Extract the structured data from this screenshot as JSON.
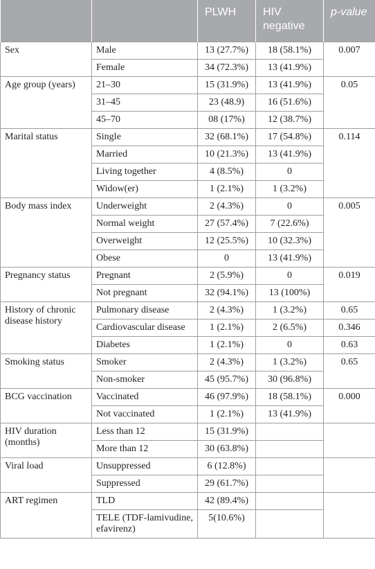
{
  "table": {
    "header": [
      "PLWH",
      "HIV negative",
      "p-value"
    ],
    "groups": [
      {
        "label": "Sex",
        "rows": [
          [
            "Male",
            "13 (27.7%)",
            "18 (58.1%)",
            "0.007"
          ],
          [
            "Female",
            "34 (72.3%)",
            "13 (41.9%)",
            null
          ]
        ]
      },
      {
        "label": "Age group (years)",
        "rows": [
          [
            "21–30",
            "15 (31.9%)",
            "13 (41.9%)",
            "0.05"
          ],
          [
            "31–45",
            "23 (48.9)",
            "16 (51.6%)",
            null
          ],
          [
            "45–70",
            "08 (17%)",
            "12 (38.7%)",
            null
          ]
        ]
      },
      {
        "label": "Marital status",
        "rows": [
          [
            "Single",
            "32 (68.1%)",
            "17 (54.8%)",
            "0.114"
          ],
          [
            "Married",
            "10 (21.3%)",
            "13 (41.9%)",
            null
          ],
          [
            "Living together",
            "4 (8.5%)",
            "0",
            null
          ],
          [
            "Widow(er)",
            "1 (2.1%)",
            "1 (3.2%)",
            null
          ]
        ]
      },
      {
        "label": "Body mass index",
        "rows": [
          [
            "Underweight",
            "2 (4.3%)",
            "0",
            "0.005"
          ],
          [
            "Normal weight",
            "27 (57.4%)",
            "7 (22.6%)",
            null
          ],
          [
            "Overweight",
            "12 (25.5%)",
            "10 (32.3%)",
            null
          ],
          [
            "Obese",
            "0",
            "13 (41.9%)",
            null
          ]
        ]
      },
      {
        "label": "Pregnancy status",
        "rows": [
          [
            "Pregnant",
            "2 (5.9%)",
            "0",
            "0.019"
          ],
          [
            "Not pregnant",
            "32 (94.1%)",
            "13 (100%)",
            null
          ]
        ]
      },
      {
        "label": "History of chronic disease history",
        "rows": [
          [
            "Pulmonary disease",
            "2 (4.3%)",
            "1 (3.2%)",
            "0.65"
          ],
          [
            "Cardiovascular disease",
            "1 (2.1%)",
            "2 (6.5%)",
            "0.346"
          ],
          [
            "Diabetes",
            "1 (2.1%)",
            "0",
            "0.63"
          ]
        ]
      },
      {
        "label": "Smoking status",
        "rows": [
          [
            "Smoker",
            "2 (4.3%)",
            "1 (3.2%)",
            "0.65"
          ],
          [
            "Non-smoker",
            "45 (95.7%)",
            "30 (96.8%)",
            null
          ]
        ]
      },
      {
        "label": "BCG vaccination",
        "rows": [
          [
            "Vaccinated",
            "46 (97.9%)",
            "18 (58.1%)",
            "0.000"
          ],
          [
            "Not vaccinated",
            "1 (2.1%)",
            "13 (41.9%)",
            null
          ]
        ]
      },
      {
        "label": "HIV duration (months)",
        "rows": [
          [
            "Less than 12",
            "15 (31.9%)",
            null,
            null
          ],
          [
            "More than 12",
            "30 (63.8%)",
            null,
            null
          ]
        ]
      },
      {
        "label": "Viral load",
        "rows": [
          [
            "Unsuppressed",
            "6 (12.8%)",
            null,
            null
          ],
          [
            "Suppressed",
            "29 (61.7%)",
            null,
            null
          ]
        ]
      },
      {
        "label": "ART regimen",
        "rows": [
          [
            "TLD",
            "42 (89.4%)",
            null,
            null
          ],
          [
            "TELE (TDF-lamivudine, efavirenz)",
            "5(10.6%)",
            null,
            null
          ]
        ]
      }
    ]
  }
}
